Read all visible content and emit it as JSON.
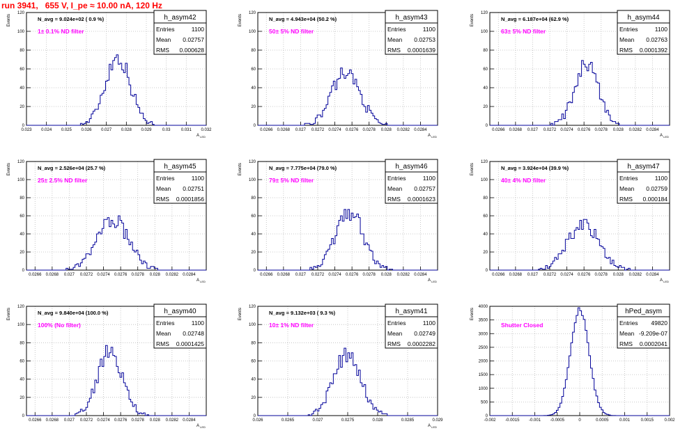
{
  "title": "run 3941,   655 V, I_pe ≈ 10.00 nA, 120 Hz",
  "colors": {
    "title": "#ff0000",
    "hist": "#000099",
    "label": "#ff00ff",
    "grid": "#bbbbbb"
  },
  "chart_data": [
    {
      "type": "histogram",
      "name": "h_asym42",
      "navg": "N_avg = 9.024e+02 ( 0.9 %)",
      "label": "1± 0.1% ND filter",
      "entries": "1100",
      "mean": "0.02757",
      "rms": "0.000628",
      "ylabel": "Events",
      "xlabel": "A_LED",
      "xlim": [
        0.023,
        0.032
      ],
      "ylim": [
        0,
        120
      ],
      "xticks": [
        "0.023",
        "0.024",
        "0.025",
        "0.026",
        "0.027",
        "0.028",
        "0.029",
        "0.03",
        "0.031",
        "0.032"
      ],
      "yticks": [
        "0",
        "20",
        "40",
        "60",
        "80",
        "100",
        "120"
      ],
      "peak": {
        "mu": 0.02757,
        "sigma": 0.000628,
        "max": 73
      }
    },
    {
      "type": "histogram",
      "name": "h_asym43",
      "navg": "N_avg = 4.943e+04 (50.2 %)",
      "label": "50± 5% ND filter",
      "entries": "1100",
      "mean": "0.02753",
      "rms": "0.0001639",
      "ylabel": "Events",
      "xlabel": "A_LED",
      "xlim": [
        0.0265,
        0.0286
      ],
      "ylim": [
        0,
        120
      ],
      "xticks": [
        "0.0266",
        "0.0268",
        "0.027",
        "0.0272",
        "0.0274",
        "0.0276",
        "0.0278",
        "0.028",
        "0.0282",
        "0.0284"
      ],
      "yticks": [
        "0",
        "20",
        "40",
        "60",
        "80",
        "100",
        "120"
      ],
      "peak": {
        "mu": 0.02753,
        "sigma": 0.0001639,
        "max": 57
      }
    },
    {
      "type": "histogram",
      "name": "h_asym44",
      "navg": "N_avg = 6.187e+04 (62.9 %)",
      "label": "63± 5% ND filter",
      "entries": "1100",
      "mean": "0.02763",
      "rms": "0.0001392",
      "ylabel": "Events",
      "xlabel": "A_LED",
      "xlim": [
        0.0265,
        0.0286
      ],
      "ylim": [
        0,
        120
      ],
      "xticks": [
        "0.0266",
        "0.0268",
        "0.027",
        "0.0272",
        "0.0274",
        "0.0276",
        "0.0278",
        "0.028",
        "0.0282",
        "0.0284"
      ],
      "yticks": [
        "0",
        "20",
        "40",
        "60",
        "80",
        "100",
        "120"
      ],
      "peak": {
        "mu": 0.02763,
        "sigma": 0.0001392,
        "max": 64
      }
    },
    {
      "type": "histogram",
      "name": "h_asym45",
      "navg": "N_avg = 2.526e+04 (25.7 %)",
      "label": "25± 2.5% ND filter",
      "entries": "1100",
      "mean": "0.02751",
      "rms": "0.0001856",
      "ylabel": "Events",
      "xlabel": "A_LED",
      "xlim": [
        0.0265,
        0.0286
      ],
      "ylim": [
        0,
        120
      ],
      "xticks": [
        "0.0266",
        "0.0268",
        "0.027",
        "0.0272",
        "0.0274",
        "0.0276",
        "0.0278",
        "0.028",
        "0.0282",
        "0.0284"
      ],
      "yticks": [
        "0",
        "20",
        "40",
        "60",
        "80",
        "100",
        "120"
      ],
      "peak": {
        "mu": 0.02751,
        "sigma": 0.0001856,
        "max": 56
      }
    },
    {
      "type": "histogram",
      "name": "h_asym46",
      "navg": "N_avg = 7.775e+04 (79.0 %)",
      "label": "79± 5% ND filter",
      "entries": "1100",
      "mean": "0.02757",
      "rms": "0.0001623",
      "ylabel": "Events",
      "xlabel": "A_LED",
      "xlim": [
        0.0265,
        0.0286
      ],
      "ylim": [
        0,
        120
      ],
      "xticks": [
        "0.0266",
        "0.0268",
        "0.027",
        "0.0272",
        "0.0274",
        "0.0276",
        "0.0278",
        "0.028",
        "0.0282",
        "0.0284"
      ],
      "yticks": [
        "0",
        "20",
        "40",
        "60",
        "80",
        "100",
        "120"
      ],
      "peak": {
        "mu": 0.02757,
        "sigma": 0.0001623,
        "max": 65
      }
    },
    {
      "type": "histogram",
      "name": "h_asym47",
      "navg": "N_avg = 3.924e+04 (39.9 %)",
      "label": "40± 4% ND filter",
      "entries": "1100",
      "mean": "0.02759",
      "rms": "0.000184",
      "ylabel": "Events",
      "xlabel": "A_LED",
      "xlim": [
        0.0265,
        0.0286
      ],
      "ylim": [
        0,
        120
      ],
      "xticks": [
        "0.0266",
        "0.0268",
        "0.027",
        "0.0272",
        "0.0274",
        "0.0276",
        "0.0278",
        "0.028",
        "0.0282",
        "0.0284"
      ],
      "yticks": [
        "0",
        "20",
        "40",
        "60",
        "80",
        "100",
        "120"
      ],
      "peak": {
        "mu": 0.02759,
        "sigma": 0.000184,
        "max": 51
      }
    },
    {
      "type": "histogram",
      "name": "h_asym40",
      "navg": "N_avg = 9.840e+04 (100.0 %)",
      "label": "100% (No filter)",
      "entries": "1100",
      "mean": "0.02748",
      "rms": "0.0001425",
      "ylabel": "Events",
      "xlabel": "A_LED",
      "xlim": [
        0.0265,
        0.0286
      ],
      "ylim": [
        0,
        120
      ],
      "xticks": [
        "0.0266",
        "0.0268",
        "0.027",
        "0.0272",
        "0.0274",
        "0.0276",
        "0.0278",
        "0.028",
        "0.0282",
        "0.0284"
      ],
      "yticks": [
        "0",
        "20",
        "40",
        "60",
        "80",
        "100",
        "120"
      ],
      "peak": {
        "mu": 0.02748,
        "sigma": 0.0001425,
        "max": 72
      }
    },
    {
      "type": "histogram",
      "name": "h_asym41",
      "navg": "N_avg = 9.132e+03 ( 9.3 %)",
      "label": "10± 1% ND filter",
      "entries": "1100",
      "mean": "0.02749",
      "rms": "0.0002282",
      "ylabel": "Events",
      "xlabel": "A_LED",
      "xlim": [
        0.026,
        0.029
      ],
      "ylim": [
        0,
        120
      ],
      "xticks": [
        "0.026",
        "0.0265",
        "0.027",
        "0.0275",
        "0.028",
        "0.0285",
        "0.029"
      ],
      "yticks": [
        "0",
        "20",
        "40",
        "60",
        "80",
        "100",
        "120"
      ],
      "peak": {
        "mu": 0.02749,
        "sigma": 0.0002282,
        "max": 66
      }
    },
    {
      "type": "histogram",
      "name": "hPed_asym",
      "navg": "",
      "label": "Shutter Closed",
      "entries": "49820",
      "mean": "-9.209e-07",
      "rms": "0.0002041",
      "ylabel": "Events",
      "xlabel": "",
      "xlim": [
        -0.002,
        0.002
      ],
      "ylim": [
        0,
        4000
      ],
      "xticks": [
        "-0.002",
        "-0.0015",
        "-0.001",
        "-0.0005",
        "0",
        "0.0005",
        "0.001",
        "0.0015",
        "0.002"
      ],
      "yticks": [
        "0",
        "500",
        "1000",
        "1500",
        "2000",
        "2500",
        "3000",
        "3500",
        "4000"
      ],
      "peak": {
        "mu": 0.0,
        "sigma": 0.0002041,
        "max": 3900
      }
    }
  ]
}
